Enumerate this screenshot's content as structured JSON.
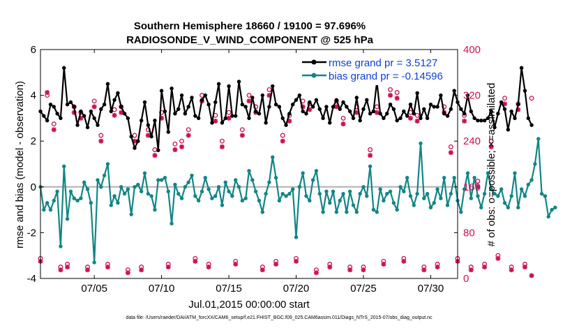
{
  "chart_data": {
    "type": "line",
    "title": "Southern Hemisphere 18660 / 19100 = 97.696%",
    "subtitle": "RADIOSONDE_V_WIND_COMPONENT @ 525 hPa",
    "xlabel": "Jul.01,2015 00:00:00 start",
    "ylabel": "rmse and bias (model - observation)",
    "ylabel_right": "# of obs: o=possible; ×=assimilated",
    "footer": "data file: /Users/raeder/DAI/ATM_forcXX/CAM6_setup/f.e21.FHIST_BGC.f09_025.CAM6assim.011/Diags_NTrS_2015-07/obs_diag_output.nc",
    "xlim": [
      1,
      32
    ],
    "ylim": [
      -4,
      6
    ],
    "ylim_right": [
      0,
      400
    ],
    "yticks": [
      "6",
      "4",
      "2",
      "0",
      "-2",
      "-4"
    ],
    "yticks_right": [
      "400",
      "320",
      "240",
      "160",
      "80",
      "0"
    ],
    "xticks": [
      {
        "day": 5,
        "label": "07/05"
      },
      {
        "day": 10,
        "label": "07/10"
      },
      {
        "day": 15,
        "label": "07/15"
      },
      {
        "day": 20,
        "label": "07/20"
      },
      {
        "day": 25,
        "label": "07/25"
      },
      {
        "day": 30,
        "label": "07/30"
      }
    ],
    "legend": [
      {
        "label": "rmse grand pr = 3.5127",
        "color": "#000000"
      },
      {
        "label": "bias grand pr = -0.14596",
        "color": "#138585"
      }
    ],
    "colors": {
      "rmse": "#000000",
      "bias": "#138585",
      "counts": "#cc1155",
      "zero": "#b0b0b0"
    },
    "series": [
      {
        "name": "rmse",
        "start_day": 1.0,
        "step_days": 0.25,
        "values": [
          3.3,
          3.1,
          2.9,
          3.6,
          3.5,
          3.2,
          3.0,
          5.2,
          3.6,
          3.7,
          3.5,
          2.7,
          3.3,
          3.1,
          2.6,
          3.3,
          3.0,
          2.7,
          3.4,
          3.6,
          4.5,
          3.3,
          3.8,
          4.1,
          3.5,
          3.2,
          3.0,
          2.2,
          1.7,
          2.0,
          2.9,
          3.7,
          2.7,
          2.2,
          2.9,
          1.6,
          4.2,
          3.3,
          2.4,
          4.3,
          3.2,
          3.4,
          4.0,
          3.2,
          3.5,
          3.9,
          3.1,
          3.0,
          3.8,
          4.0,
          3.6,
          2.8,
          3.7,
          4.5,
          2.8,
          3.0,
          4.4,
          3.1,
          3.1,
          4.6,
          3.6,
          3.5,
          3.0,
          3.9,
          3.3,
          3.2,
          4.0,
          2.8,
          3.5,
          4.4,
          3.6,
          3.5,
          3.0,
          2.7,
          3.2,
          3.6,
          3.8,
          4.0,
          3.3,
          3.2,
          3.7,
          3.5,
          3.8,
          3.4,
          3.0,
          3.5,
          2.8,
          3.5,
          3.8,
          3.4,
          3.7,
          3.5,
          3.3,
          3.0,
          3.9,
          2.9,
          3.4,
          3.8,
          3.2,
          3.3,
          4.6,
          3.2,
          3.0,
          3.2,
          3.6,
          3.4,
          2.9,
          3.0,
          3.3,
          3.1,
          3.6,
          3.2,
          4.1,
          3.0,
          3.4,
          3.0,
          3.6,
          3.5,
          3.5,
          4.0,
          3.2,
          3.1,
          3.4,
          4.2,
          3.7,
          3.4,
          3.2,
          4.0,
          3.3,
          3.0,
          2.9,
          2.9,
          2.9,
          3.0,
          3.3,
          2.6,
          3.2,
          3.7,
          3.4,
          2.5,
          3.3,
          3.0,
          3.6,
          5.2,
          4.2,
          3.0,
          2.7
        ]
      },
      {
        "name": "bias",
        "start_day": 1.0,
        "step_days": 0.25,
        "values": [
          0.0,
          -1.0,
          -0.7,
          -1.0,
          -0.6,
          -0.2,
          -2.6,
          0.9,
          -1.4,
          -0.2,
          -0.5,
          -0.6,
          -0.5,
          0.2,
          -0.1,
          -0.7,
          -3.3,
          0.3,
          0.0,
          0.5,
          1.0,
          -0.8,
          -0.4,
          -0.7,
          0.0,
          -0.3,
          -0.1,
          -1.2,
          0.0,
          0.1,
          -0.2,
          0.6,
          -0.3,
          -0.4,
          -1.0,
          0.3,
          0.3,
          0.4,
          -0.2,
          -1.6,
          0.1,
          -0.3,
          -0.5,
          0.0,
          0.2,
          0.5,
          -0.4,
          -0.6,
          -0.2,
          0.4,
          -0.1,
          -0.5,
          -0.4,
          0.0,
          -0.8,
          0.2,
          -0.2,
          -0.4,
          0.3,
          0.0,
          -0.6,
          -0.5,
          0.7,
          0.3,
          -0.2,
          -0.6,
          -1.1,
          -0.3,
          0.2,
          1.3,
          0.4,
          -0.6,
          -0.3,
          -0.4,
          -0.3,
          -0.1,
          -2.2,
          0.0,
          0.6,
          -0.4,
          -0.6,
          0.3,
          0.7,
          -0.3,
          -1.1,
          -0.2,
          -0.7,
          -0.2,
          -1.1,
          -0.6,
          -0.3,
          -1.1,
          -0.2,
          -0.8,
          -1.1,
          -0.3,
          0.0,
          -0.4,
          0.9,
          -1.0,
          -1.1,
          -0.1,
          -0.6,
          -0.3,
          -0.2,
          -0.7,
          -1.0,
          0.0,
          -0.2,
          0.4,
          -0.4,
          -0.8,
          -0.3,
          1.9,
          -0.5,
          -0.3,
          -0.9,
          -0.7,
          -0.1,
          -0.5,
          0.4,
          -0.8,
          -0.3,
          0.4,
          -0.6,
          -1.1,
          -0.1,
          0.6,
          -0.5,
          0.4,
          -0.4,
          -0.9,
          -0.3,
          0.6,
          -0.1,
          -0.3,
          -0.4,
          -0.1,
          -0.7,
          -0.9,
          -0.4,
          0.6,
          -0.9,
          -0.1,
          -0.4,
          0.1,
          0.3,
          1.0,
          2.1,
          -0.3,
          -0.4,
          -1.3,
          -1.0,
          -0.9
        ]
      },
      {
        "name": "obs_possible",
        "axis": "right",
        "start_day": 1.0,
        "step_days": 0.5,
        "values": [
          35,
          320,
          270,
          20,
          25,
          300,
          290,
          20,
          310,
          250,
          25,
          295,
          300,
          15,
          250,
          20,
          260,
          225,
          290,
          25,
          235,
          240,
          260,
          35,
          320,
          25,
          285,
          240,
          290,
          30,
          260,
          320,
          300,
          20,
          330,
          30,
          250,
          285,
          35,
          310,
          305,
          15,
          360,
          25,
          310,
          280,
          20,
          300,
          20,
          225,
          300,
          30,
          330,
          325,
          35,
          290,
          285,
          20,
          365,
          25,
          300,
          230,
          35,
          285,
          20,
          170,
          25,
          240,
          40,
          315,
          20,
          305,
          25,
          315
        ]
      },
      {
        "name": "obs_assimilated",
        "axis": "right",
        "start_day": 1.0,
        "step_days": 0.5,
        "values": [
          30,
          325,
          260,
          15,
          20,
          290,
          280,
          15,
          300,
          240,
          20,
          285,
          290,
          10,
          240,
          15,
          250,
          215,
          280,
          20,
          225,
          230,
          250,
          30,
          310,
          20,
          275,
          230,
          280,
          25,
          250,
          310,
          290,
          15,
          320,
          25,
          240,
          275,
          30,
          300,
          295,
          10,
          350,
          20,
          300,
          270,
          15,
          290,
          15,
          215,
          290,
          25,
          320,
          315,
          30,
          280,
          275,
          15,
          355,
          20,
          290,
          220,
          30,
          275,
          15,
          160,
          20,
          230,
          35,
          305,
          15,
          295,
          20,
          5
        ]
      }
    ]
  }
}
